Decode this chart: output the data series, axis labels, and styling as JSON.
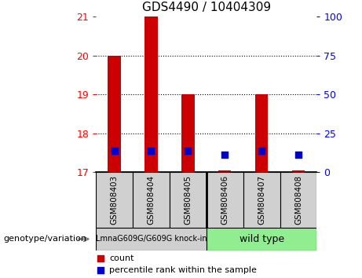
{
  "title": "GDS4490 / 10404309",
  "samples": [
    "GSM808403",
    "GSM808404",
    "GSM808405",
    "GSM808406",
    "GSM808407",
    "GSM808408"
  ],
  "red_bar_bottom": [
    17.0,
    17.0,
    17.0,
    17.0,
    17.0,
    17.0
  ],
  "red_bar_top": [
    20.0,
    21.0,
    19.0,
    17.05,
    19.0,
    17.05
  ],
  "blue_square_y": [
    17.55,
    17.55,
    17.55,
    17.45,
    17.55,
    17.45
  ],
  "ylim_left": [
    17,
    21
  ],
  "ylim_right": [
    0,
    100
  ],
  "yticks_left": [
    17,
    18,
    19,
    20,
    21
  ],
  "yticks_right": [
    0,
    25,
    50,
    75,
    100
  ],
  "group1_label": "LmnaG609G/G609G knock-in",
  "group2_label": "wild type",
  "group_label_prefix": "genotype/variation",
  "group1_color": "#d0d0d0",
  "group2_color": "#90ee90",
  "sample_box_color": "#d0d0d0",
  "red_color": "#cc0000",
  "blue_color": "#0000cc",
  "bar_width": 0.35,
  "blue_square_size": 40,
  "group1_count": 3,
  "group2_count": 3
}
